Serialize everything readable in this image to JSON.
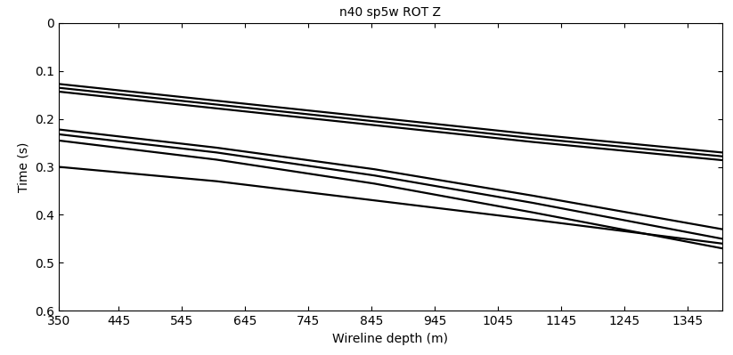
{
  "chart_data": {
    "type": "line",
    "title": "n40 sp5w ROT Z",
    "x_label": "Wireline depth (m)",
    "y_label": "Time (s)",
    "x": [
      350,
      600,
      850,
      1100,
      1400
    ],
    "series": [
      {
        "color": "#000000",
        "values": [
          0.127,
          0.162,
          0.197,
          0.232,
          0.27
        ]
      },
      {
        "color": "#000000",
        "values": [
          0.135,
          0.17,
          0.205,
          0.24,
          0.278
        ]
      },
      {
        "color": "#000000",
        "values": [
          0.143,
          0.178,
          0.213,
          0.248,
          0.286
        ]
      },
      {
        "color": "#000000",
        "values": [
          0.222,
          0.26,
          0.305,
          0.36,
          0.43
        ]
      },
      {
        "color": "#000000",
        "values": [
          0.232,
          0.27,
          0.318,
          0.375,
          0.45
        ]
      },
      {
        "color": "#000000",
        "values": [
          0.245,
          0.285,
          0.335,
          0.395,
          0.47
        ]
      },
      {
        "color": "#000000",
        "values": [
          0.3,
          0.33,
          0.37,
          0.41,
          0.46
        ]
      }
    ],
    "xlim": [
      350,
      1400
    ],
    "xticks": [
      350,
      445,
      545,
      645,
      745,
      845,
      945,
      1045,
      1145,
      1245,
      1345
    ],
    "ylim": [
      0.6,
      0
    ],
    "yticks": [
      0,
      0.1,
      0.2,
      0.3,
      0.4,
      0.5,
      0.6
    ],
    "grid": false
  }
}
